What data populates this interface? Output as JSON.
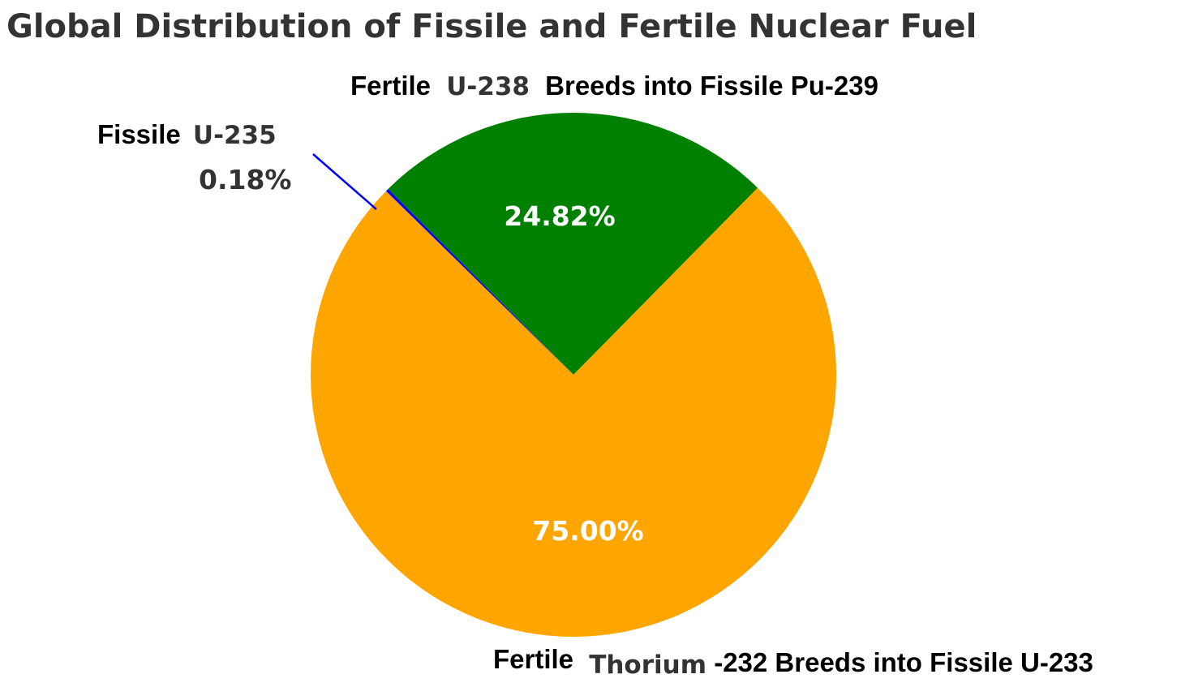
{
  "chart_data": {
    "type": "pie",
    "title": "Global Distribution of Fissile and Fertile Nuclear Fuel",
    "slices": [
      {
        "label_prefix": "Fissile",
        "label_isotope": "U-235",
        "label_suffix": "",
        "value": 0.18,
        "pct_text": "0.18%",
        "color": "#0000ff"
      },
      {
        "label_prefix": "Fertile",
        "label_isotope": "U-238",
        "label_suffix": "Breeds into Fissile Pu-239",
        "value": 24.82,
        "pct_text": "24.82%",
        "color": "#008000"
      },
      {
        "label_prefix": "Fertile",
        "label_isotope": "Thorium",
        "label_suffix": "-232 Breeds into Fissile U-233",
        "value": 75.0,
        "pct_text": "75.00%",
        "color": "#ffa500"
      }
    ]
  }
}
